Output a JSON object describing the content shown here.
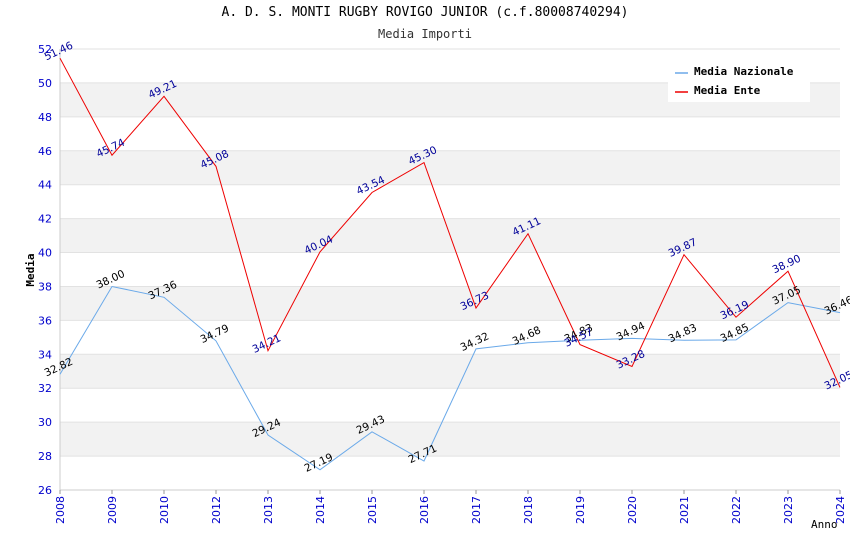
{
  "chart_data": {
    "type": "line",
    "title": "A. D. S. MONTI RUGBY ROVIGO JUNIOR (c.f.80008740294)",
    "subtitle": "Media Importi",
    "xlabel": "Anno",
    "ylabel": "Media",
    "ylim": [
      26,
      52
    ],
    "yticks": [
      26,
      28,
      30,
      32,
      34,
      36,
      38,
      40,
      42,
      44,
      46,
      48,
      50,
      52
    ],
    "x": [
      "2008",
      "2009",
      "2010",
      "2012",
      "2013",
      "2014",
      "2015",
      "2016",
      "2017",
      "2018",
      "2019",
      "2020",
      "2021",
      "2022",
      "2023",
      "2024"
    ],
    "grid": true,
    "legend_position": "top-right",
    "series": [
      {
        "name": "Media Nazionale",
        "color": "#6aa9e9",
        "label_color": "#000000",
        "values": [
          32.82,
          38.0,
          37.36,
          34.79,
          29.24,
          27.19,
          29.43,
          27.71,
          34.32,
          34.68,
          34.83,
          34.94,
          34.83,
          34.85,
          37.05,
          36.46
        ],
        "labels": [
          "32.82",
          "38.00",
          "37.36",
          "34.79",
          "29.24",
          "27.19",
          "29.43",
          "27.71",
          "34.32",
          "34.68",
          "34.83",
          "34.94",
          "34.83",
          "34.85",
          "37.05",
          "36.46"
        ]
      },
      {
        "name": "Media Ente",
        "color": "#ee0000",
        "label_color": "#000099",
        "values": [
          51.46,
          45.74,
          49.21,
          45.08,
          34.21,
          40.04,
          43.54,
          45.3,
          36.73,
          41.11,
          34.57,
          33.28,
          39.87,
          36.19,
          38.9,
          32.05
        ],
        "labels": [
          "51.46",
          "45.74",
          "49.21",
          "45.08",
          "34.21",
          "40.04",
          "43.54",
          "45.30",
          "36.73",
          "41.11",
          "34.57",
          "33.28",
          "39.87",
          "36.19",
          "38.90",
          "32.05"
        ]
      }
    ]
  }
}
